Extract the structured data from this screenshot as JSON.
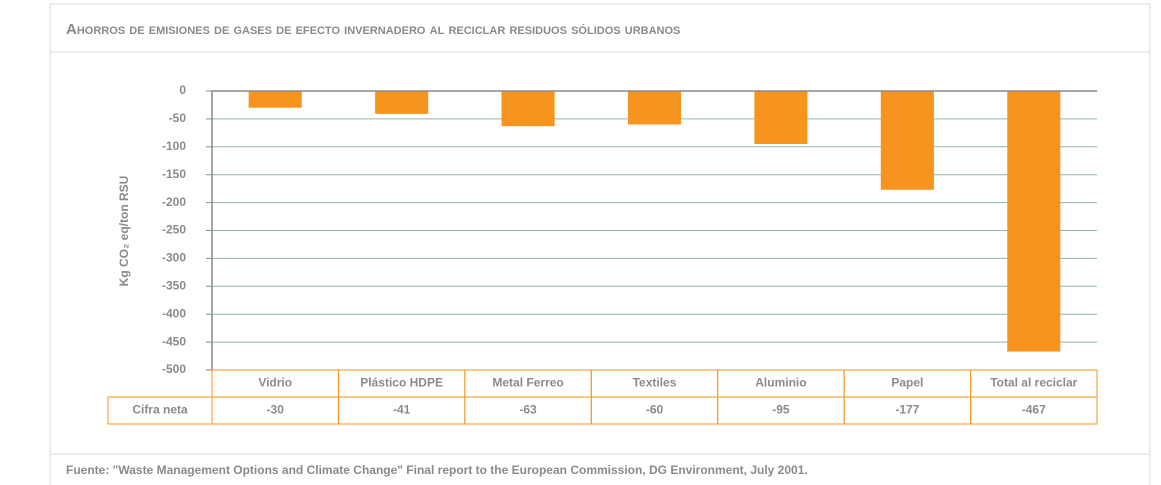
{
  "chart_data": {
    "type": "bar",
    "title": "Ahorros de emisiones de gases de efecto invernadero al reciclar residuos sólidos urbanos",
    "y_label": "Kg CO₂ eq/ton RSU",
    "categories": [
      "Vidrio",
      "Plástico  HDPE",
      "Metal Ferreo",
      "Textiles",
      "Aluminio",
      "Papel",
      "Total al reciclar"
    ],
    "values": [
      -30,
      -41,
      -63,
      -60,
      -95,
      -177,
      -467
    ],
    "row_label": "Cifra neta",
    "color": "#f7941d",
    "ylim": [
      0,
      -500
    ],
    "yticks": [
      0,
      -50,
      -100,
      -150,
      -200,
      -250,
      -300,
      -350,
      -400,
      -450,
      -500
    ],
    "grid": true,
    "source": "Fuente: \"Waste Management Options and Climate Change\" Final report to the European Commission, DG Environment, July 2001."
  }
}
